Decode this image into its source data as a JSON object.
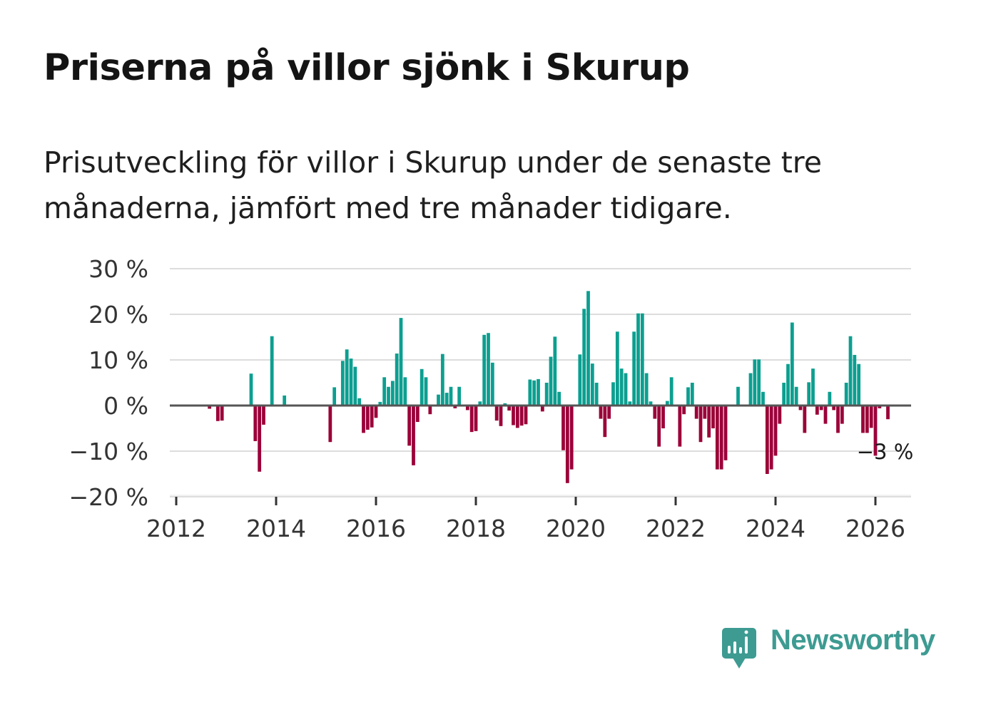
{
  "title": "Priserna på villor sjönk i Skurup",
  "subtitle": "Prisutveckling för villor i Skurup under de senaste tre månaderna, jämfört med tre månader tidigare.",
  "brand": {
    "name": "Newsworthy",
    "icon": "newsworthy-bar-chart-speech-bubble-icon",
    "color": "#3d9b92"
  },
  "colors": {
    "positive": "#0c9f90",
    "negative": "#9b0038",
    "grid": "#dddddd",
    "zero": "#555555"
  },
  "chart_data": {
    "type": "bar",
    "title": "Priserna på villor sjönk i Skurup",
    "xlabel": "",
    "ylabel": "",
    "ylim": [
      -20,
      30
    ],
    "xlim": [
      2012,
      2026.7
    ],
    "yticks": [
      -20,
      -10,
      0,
      10,
      20,
      30
    ],
    "ytick_labels": [
      "−20 %",
      "−10 %",
      "0 %",
      "10 %",
      "20 %",
      "30 %"
    ],
    "xticks": [
      2012,
      2014,
      2016,
      2018,
      2020,
      2022,
      2024,
      2026
    ],
    "xtick_labels": [
      "2012",
      "2014",
      "2016",
      "2018",
      "2020",
      "2022",
      "2024",
      "2026"
    ],
    "grid": true,
    "last_value_label": "−3 %",
    "series": [
      {
        "name": "Prisutveckling",
        "start": "2012-09",
        "step": "month",
        "values": [
          -0.7,
          0,
          -3.4,
          -3.3,
          0,
          0,
          0,
          0,
          0,
          0,
          7,
          -7.8,
          -14.5,
          -4.2,
          0,
          15.2,
          0,
          0,
          2.2,
          0,
          0,
          0,
          0,
          0,
          0,
          0,
          0,
          0,
          0,
          -8,
          4,
          0,
          9.8,
          12.3,
          10.3,
          8.5,
          1.6,
          -6,
          -5.3,
          -4.8,
          -2.7,
          0.8,
          6.2,
          4.1,
          5.4,
          11.4,
          19.2,
          6.2,
          -8.8,
          -13.1,
          -3.6,
          8,
          6.2,
          -1.9,
          0,
          2.4,
          11.3,
          2.8,
          4.1,
          -0.6,
          4.1,
          0,
          -1,
          -5.8,
          -5.6,
          0.9,
          15.5,
          15.9,
          9.4,
          -3.3,
          -4.5,
          0.5,
          -1.1,
          -4.3,
          -4.9,
          -4.4,
          -4.1,
          5.7,
          5.5,
          5.8,
          -1.3,
          5,
          10.7,
          15.1,
          3,
          -9.8,
          -17,
          -14,
          0,
          11.2,
          21.2,
          25.1,
          9.2,
          5,
          -2.9,
          -6.9,
          -2.9,
          5.1,
          16.2,
          8.1,
          7.1,
          0.9,
          16.2,
          20.2,
          20.2,
          7.1,
          0.9,
          -2.9,
          -9,
          -5,
          1,
          6.2,
          0,
          -9,
          -1.9,
          4,
          5,
          -2.9,
          -8,
          -2.9,
          -7,
          -5,
          -14,
          -14,
          -12,
          0,
          0,
          4.1,
          0,
          0,
          7.1,
          10.1,
          10.1,
          3,
          -15,
          -14,
          -11,
          -4,
          5,
          9.1,
          18.2,
          4.1,
          -1,
          -6,
          5.1,
          8.1,
          -2,
          -1,
          -4,
          3,
          -1,
          -6,
          -4,
          5,
          15.2,
          11.1,
          9.1,
          -6,
          -6,
          -4.9,
          -11,
          -0.6,
          0,
          -3
        ]
      }
    ]
  }
}
